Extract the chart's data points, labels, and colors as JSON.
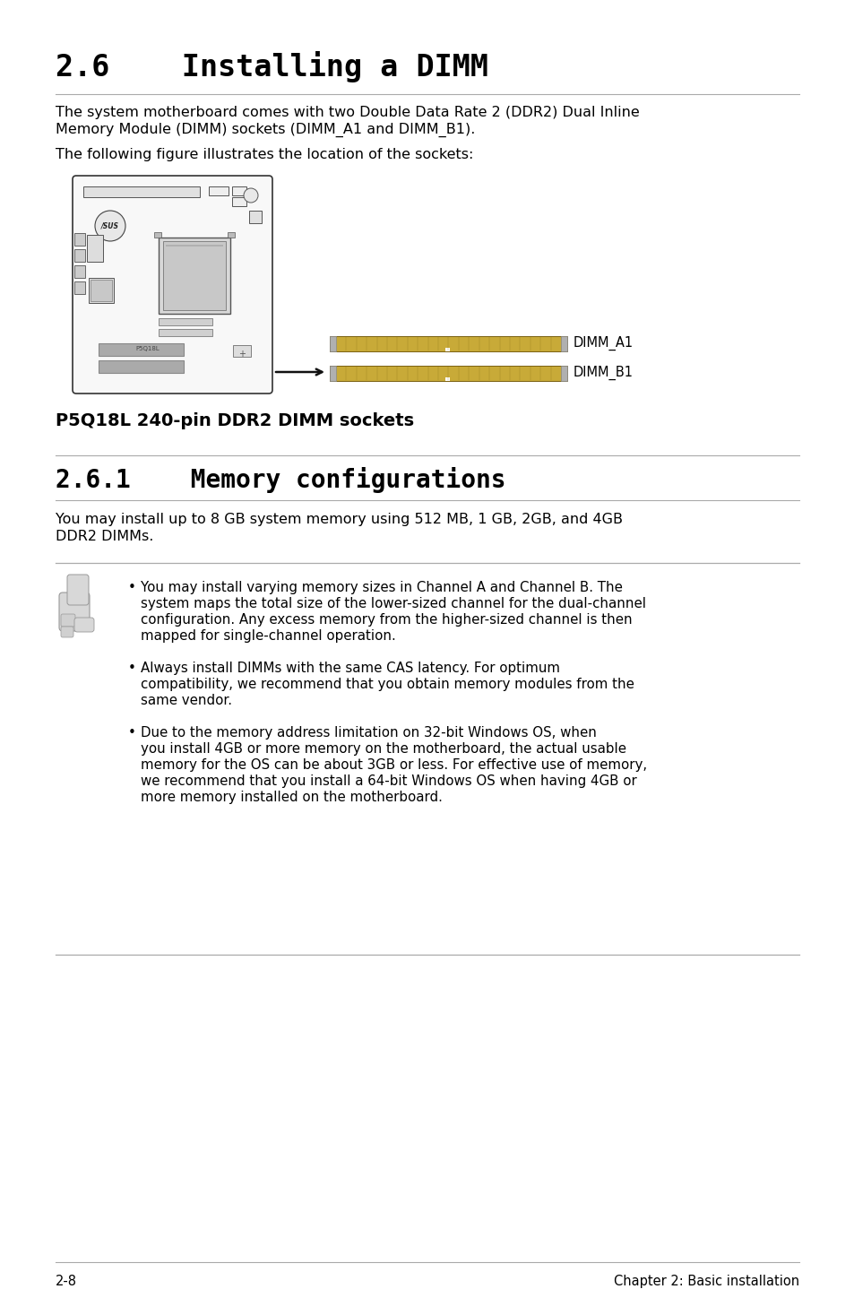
{
  "title_num": "2.6",
  "title_text": "    Installing a DIMM",
  "para1_line1": "The system motherboard comes with two Double Data Rate 2 (DDR2) Dual Inline",
  "para1_line2": "Memory Module (DIMM) sockets (DIMM_A1 and DIMM_B1).",
  "para2": "The following figure illustrates the location of the sockets:",
  "caption": "P5Q18L 240-pin DDR2 DIMM sockets",
  "subtitle_num": "2.6.1",
  "subtitle_text": "    Memory configurations",
  "para3_line1": "You may install up to 8 GB system memory using 512 MB, 1 GB, 2GB, and 4GB",
  "para3_line2": "DDR2 DIMMs.",
  "bullet1_line1": "You may install varying memory sizes in Channel A and Channel B. The",
  "bullet1_line2": "system maps the total size of the lower-sized channel for the dual-channel",
  "bullet1_line3": "configuration. Any excess memory from the higher-sized channel is then",
  "bullet1_line4": "mapped for single-channel operation.",
  "bullet2_line1": "Always install DIMMs with the same CAS latency. For optimum",
  "bullet2_line2": "compatibility, we recommend that you obtain memory modules from the",
  "bullet2_line3": "same vendor.",
  "bullet3_line1": "Due to the memory address limitation on 32-bit Windows OS, when",
  "bullet3_line2": "you install 4GB or more memory on the motherboard, the actual usable",
  "bullet3_line3": "memory for the OS can be about 3GB or less. For effective use of memory,",
  "bullet3_line4": "we recommend that you install a 64-bit Windows OS when having 4GB or",
  "bullet3_line5": "more memory installed on the motherboard.",
  "footer_left": "2-8",
  "footer_right": "Chapter 2: Basic installation",
  "bg_color": "#ffffff",
  "text_color": "#000000",
  "line_color": "#aaaaaa",
  "dimm_gold": "#c8aa38",
  "dimm_gray": "#b0b0b0",
  "board_bg": "#f8f8f8",
  "board_edge": "#333333"
}
